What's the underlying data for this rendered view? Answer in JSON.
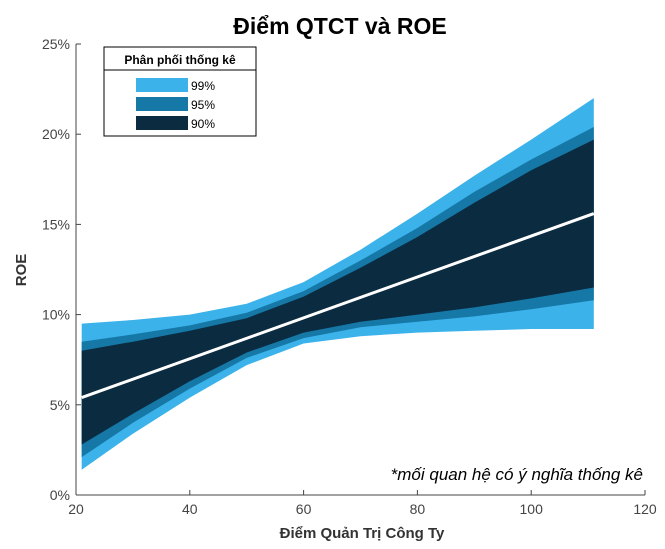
{
  "chart_data": {
    "type": "area",
    "title": "Điểm QTCT và ROE",
    "xlabel": "Điểm Quản Trị Công Ty",
    "ylabel": "ROE",
    "xlim": [
      20,
      120
    ],
    "ylim": [
      0,
      25
    ],
    "x_ticks": [
      "20",
      "40",
      "60",
      "80",
      "100",
      "120"
    ],
    "y_ticks": [
      "0%",
      "5%",
      "10%",
      "15%",
      "20%",
      "25%"
    ],
    "grid": false,
    "legend": {
      "title": "Phân phối thống kê",
      "placement": "top-left",
      "entries": [
        "99%",
        "95%",
        "90%"
      ]
    },
    "annotation": "*mối quan hệ có ý nghĩa thống kê",
    "x": [
      21,
      30,
      40,
      50,
      60,
      70,
      80,
      90,
      100,
      111
    ],
    "series": [
      {
        "name": "99%",
        "color": "#3bb2ea",
        "upper": [
          9.5,
          9.7,
          10.0,
          10.6,
          11.8,
          13.6,
          15.6,
          17.7,
          19.7,
          22.0
        ],
        "lower": [
          1.4,
          3.4,
          5.4,
          7.2,
          8.4,
          8.8,
          9.0,
          9.1,
          9.2,
          9.2
        ]
      },
      {
        "name": "95%",
        "color": "#1578a7",
        "upper": [
          8.5,
          8.9,
          9.4,
          10.1,
          11.3,
          13.0,
          14.8,
          16.8,
          18.6,
          20.4
        ],
        "lower": [
          2.1,
          4.0,
          5.9,
          7.6,
          8.7,
          9.3,
          9.6,
          9.9,
          10.3,
          10.8
        ]
      },
      {
        "name": "90%",
        "color": "#0b2b40",
        "upper": [
          8.0,
          8.5,
          9.1,
          9.8,
          11.0,
          12.6,
          14.3,
          16.2,
          18.0,
          19.7
        ],
        "lower": [
          2.8,
          4.5,
          6.3,
          7.9,
          9.0,
          9.6,
          10.0,
          10.4,
          10.9,
          11.5
        ]
      }
    ],
    "trend_line": {
      "color": "#ffffff",
      "x": [
        21,
        111
      ],
      "y": [
        5.4,
        15.6
      ]
    }
  }
}
